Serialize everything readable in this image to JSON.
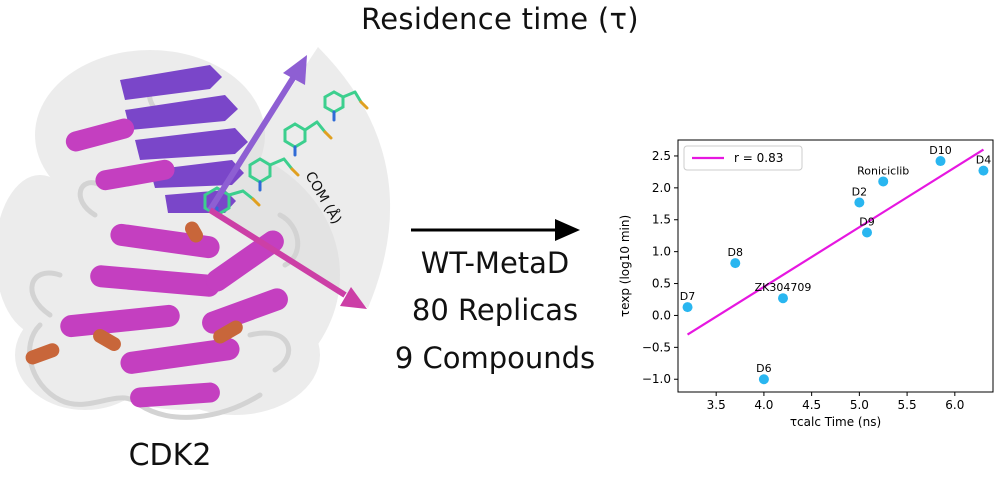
{
  "title": "Residence time (τ)",
  "protein_label": "CDK2",
  "axis_annotation": "COM (Å)",
  "workflow_steps": [
    "WT-MetaD",
    "80 Replicas",
    "9 Compounds"
  ],
  "colors": {
    "helix": "#c43fc0",
    "sheet": "#7a46c9",
    "loop": "#c2c2c2",
    "turn": "#c8663a",
    "arrow_up": "#8e5fd3",
    "arrow_down": "#cc3fa6",
    "points": "#29b6f0",
    "fit_line": "#e617e0"
  },
  "chart_data": {
    "type": "scatter",
    "title": "",
    "xlabel": "τcalc Time (ns)",
    "ylabel": "τexp (log10 min)",
    "xlim": [
      3.1,
      6.4
    ],
    "ylim": [
      -1.2,
      2.75
    ],
    "xticks": [
      3.5,
      4.0,
      4.5,
      5.0,
      5.5,
      6.0
    ],
    "yticks": [
      -1.0,
      -0.5,
      0.0,
      0.5,
      1.0,
      1.5,
      2.0,
      2.5
    ],
    "points": [
      {
        "label": "D7",
        "x": 3.2,
        "y": 0.13
      },
      {
        "label": "D8",
        "x": 3.7,
        "y": 0.82
      },
      {
        "label": "D6",
        "x": 4.0,
        "y": -1.0
      },
      {
        "label": "ZK304709",
        "x": 4.2,
        "y": 0.27
      },
      {
        "label": "D2",
        "x": 5.0,
        "y": 1.77
      },
      {
        "label": "D9",
        "x": 5.08,
        "y": 1.3
      },
      {
        "label": "Roniciclib",
        "x": 5.25,
        "y": 2.1
      },
      {
        "label": "D10",
        "x": 5.85,
        "y": 2.42
      },
      {
        "label": "D4",
        "x": 6.3,
        "y": 2.27
      }
    ],
    "fit": {
      "x": [
        3.2,
        6.3
      ],
      "y": [
        -0.3,
        2.6
      ]
    },
    "legend": {
      "label": "r = 0.83",
      "placement": "top-left"
    },
    "grid": false
  }
}
